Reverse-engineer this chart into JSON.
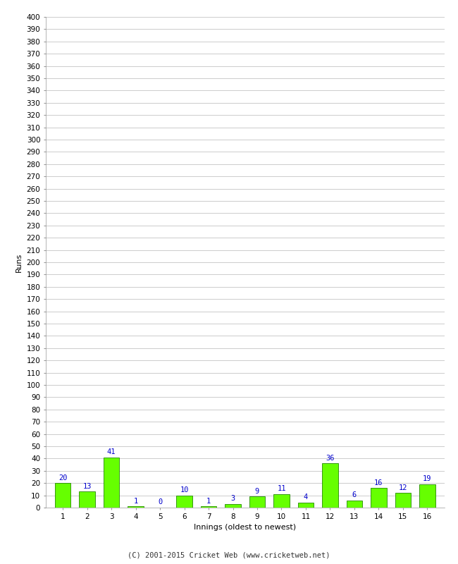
{
  "innings": [
    1,
    2,
    3,
    4,
    5,
    6,
    7,
    8,
    9,
    10,
    11,
    12,
    13,
    14,
    15,
    16
  ],
  "runs": [
    20,
    13,
    41,
    1,
    0,
    10,
    1,
    3,
    9,
    11,
    4,
    36,
    6,
    16,
    12,
    19
  ],
  "bar_color": "#66ff00",
  "bar_edge_color": "#228800",
  "label_color": "#0000cc",
  "xlabel": "Innings (oldest to newest)",
  "ylabel": "Runs",
  "ylim": [
    0,
    400
  ],
  "yticks": [
    0,
    10,
    20,
    30,
    40,
    50,
    60,
    70,
    80,
    90,
    100,
    110,
    120,
    130,
    140,
    150,
    160,
    170,
    180,
    190,
    200,
    210,
    220,
    230,
    240,
    250,
    260,
    270,
    280,
    290,
    300,
    310,
    320,
    330,
    340,
    350,
    360,
    370,
    380,
    390,
    400
  ],
  "footer": "(C) 2001-2015 Cricket Web (www.cricketweb.net)",
  "background_color": "#ffffff",
  "grid_color": "#cccccc",
  "label_fontsize": 7.5,
  "axis_tick_fontsize": 7.5,
  "axis_label_fontsize": 8,
  "footer_fontsize": 7.5
}
